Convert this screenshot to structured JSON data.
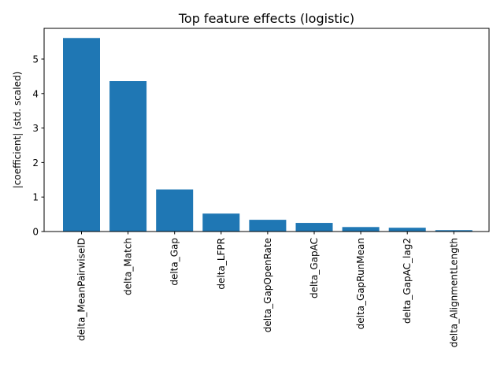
{
  "chart_data": {
    "type": "bar",
    "title": "Top feature effects (logistic)",
    "xlabel": "",
    "ylabel": "|coefficient| (std. scaled)",
    "categories": [
      "delta_MeanPairwiseID",
      "delta_Match",
      "delta_Gap",
      "delta_LFPR",
      "delta_GapOpenRate",
      "delta_GapAC",
      "delta_GapRunMean",
      "delta_GapAC_lag2",
      "delta_AlignmentLength"
    ],
    "values": [
      5.61,
      4.36,
      1.22,
      0.52,
      0.34,
      0.25,
      0.13,
      0.11,
      0.04
    ],
    "ylim": [
      0,
      5.89
    ],
    "yticks": [
      0,
      1,
      2,
      3,
      4,
      5
    ],
    "bar_color": "#1f77b4",
    "grid": false,
    "legend": "none"
  }
}
